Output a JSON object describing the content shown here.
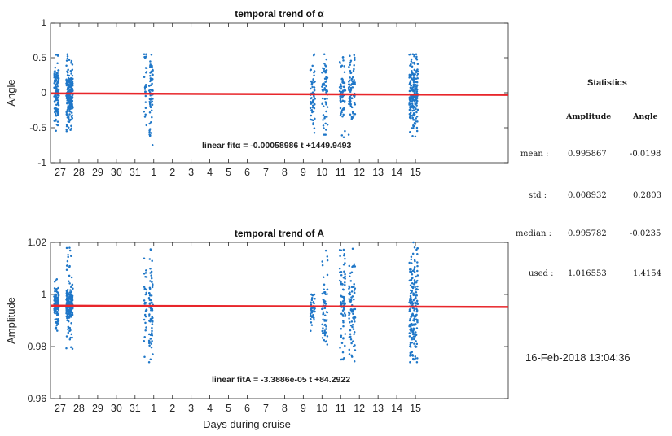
{
  "chart_data": [
    {
      "type": "scatter",
      "title": "temporal trend of α",
      "xlabel": "",
      "ylabel": "Angle",
      "xtick_labels": [
        "27",
        "28",
        "29",
        "30",
        "31",
        "1",
        "2",
        "3",
        "4",
        "5",
        "6",
        "7",
        "8",
        "9",
        "10",
        "11",
        "12",
        "13",
        "14",
        "15"
      ],
      "ylim": [
        -1,
        1
      ],
      "yticks": [
        "-1",
        "-0.5",
        "0",
        "0.5",
        "1"
      ],
      "grid": false,
      "fit_label": "linear fitα = -0.00058986 t +1449.9493",
      "fit_line": {
        "y_start": -0.01,
        "y_end": -0.03
      },
      "point_color": "#1f77c8",
      "fit_color": "#e8262b",
      "clusters": [
        {
          "day_index": -0.2,
          "width": 0.25,
          "n": 120,
          "center": 0.02,
          "spread": 0.2,
          "min": -0.55,
          "max": 0.55
        },
        {
          "day_index": 0.5,
          "width": 0.35,
          "n": 200,
          "center": -0.05,
          "spread": 0.15,
          "min": -0.55,
          "max": 0.55
        },
        {
          "day_index": 4.55,
          "width": 0.15,
          "n": 25,
          "center": 0.15,
          "spread": 0.3,
          "min": -0.75,
          "max": 0.55
        },
        {
          "day_index": 4.85,
          "width": 0.2,
          "n": 60,
          "center": 0.0,
          "spread": 0.25,
          "min": -0.75,
          "max": 0.55
        },
        {
          "day_index": 13.5,
          "width": 0.25,
          "n": 60,
          "center": 0.0,
          "spread": 0.25,
          "min": -0.6,
          "max": 0.55
        },
        {
          "day_index": 14.15,
          "width": 0.3,
          "n": 60,
          "center": 0.0,
          "spread": 0.25,
          "min": -0.6,
          "max": 0.55
        },
        {
          "day_index": 15.1,
          "width": 0.3,
          "n": 70,
          "center": -0.05,
          "spread": 0.25,
          "min": -0.65,
          "max": 0.55
        },
        {
          "day_index": 15.6,
          "width": 0.35,
          "n": 70,
          "center": 0.0,
          "spread": 0.25,
          "min": -0.6,
          "max": 0.55
        },
        {
          "day_index": 18.9,
          "width": 0.45,
          "n": 200,
          "center": 0.0,
          "spread": 0.25,
          "min": -0.7,
          "max": 0.55
        }
      ]
    },
    {
      "type": "scatter",
      "title": "temporal trend of A",
      "xlabel": "Days during cruise",
      "ylabel": "Amplitude",
      "xtick_labels": [
        "27",
        "28",
        "29",
        "30",
        "31",
        "1",
        "2",
        "3",
        "4",
        "5",
        "6",
        "7",
        "8",
        "9",
        "10",
        "11",
        "12",
        "13",
        "14",
        "15"
      ],
      "ylim": [
        0.96,
        1.02
      ],
      "yticks": [
        "0.96",
        "0.98",
        "1",
        "1.02"
      ],
      "grid": false,
      "fit_label": "linear fitA = -3.3886e-05 t +84.2922",
      "fit_line": {
        "y_start": 0.9957,
        "y_end": 0.9952
      },
      "point_color": "#1f77c8",
      "fit_color": "#e8262b",
      "clusters": [
        {
          "day_index": -0.2,
          "width": 0.25,
          "n": 110,
          "center": 0.996,
          "spread": 0.003,
          "min": 0.986,
          "max": 1.006
        },
        {
          "day_index": 0.5,
          "width": 0.35,
          "n": 190,
          "center": 0.996,
          "spread": 0.003,
          "min": 0.978,
          "max": 1.018
        },
        {
          "day_index": 4.55,
          "width": 0.15,
          "n": 30,
          "center": 0.995,
          "spread": 0.008,
          "min": 0.976,
          "max": 1.02
        },
        {
          "day_index": 4.85,
          "width": 0.2,
          "n": 70,
          "center": 0.995,
          "spread": 0.009,
          "min": 0.974,
          "max": 1.02
        },
        {
          "day_index": 13.5,
          "width": 0.25,
          "n": 40,
          "center": 0.995,
          "spread": 0.003,
          "min": 0.986,
          "max": 1.0
        },
        {
          "day_index": 14.15,
          "width": 0.3,
          "n": 60,
          "center": 0.995,
          "spread": 0.008,
          "min": 0.98,
          "max": 1.02
        },
        {
          "day_index": 15.1,
          "width": 0.3,
          "n": 80,
          "center": 0.995,
          "spread": 0.009,
          "min": 0.975,
          "max": 1.02
        },
        {
          "day_index": 15.6,
          "width": 0.35,
          "n": 80,
          "center": 0.994,
          "spread": 0.009,
          "min": 0.973,
          "max": 1.02
        },
        {
          "day_index": 18.9,
          "width": 0.45,
          "n": 200,
          "center": 0.994,
          "spread": 0.01,
          "min": 0.974,
          "max": 1.02
        }
      ]
    }
  ],
  "stats": {
    "title": "Statistics",
    "col_amplitude": "Amplitude",
    "col_angle": "Angle",
    "rows": [
      {
        "label": "mean :",
        "amplitude": "0.995867",
        "angle": "-0.0198"
      },
      {
        "label": "std :",
        "amplitude": "0.008932",
        "angle": "0.2803"
      },
      {
        "label": "median :",
        "amplitude": "0.995782",
        "angle": "-0.0235"
      },
      {
        "label": "used :",
        "amplitude": "1.016553",
        "angle": "1.4154"
      }
    ],
    "timestamp": "16-Feb-2018 13:04:36"
  }
}
